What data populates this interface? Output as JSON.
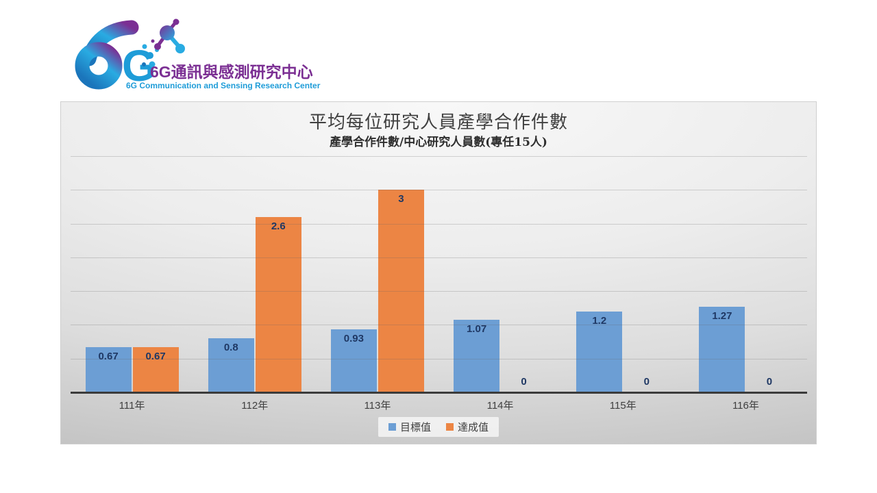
{
  "logo": {
    "mark": "6G",
    "name_zh": "6G通訊與感測研究中心",
    "name_en": "6G Communication and Sensing Research Center",
    "colors": {
      "purple": "#7B2F93",
      "blue": "#1E9CD8",
      "cyan": "#29ABE2",
      "deep_blue": "#1B75BB"
    }
  },
  "chart_data": {
    "type": "bar",
    "title": "平均每位研究人員產學合作件數",
    "subtitle": "產學合作件數/中心研究人員數(專任15人)",
    "categories": [
      "111年",
      "112年",
      "113年",
      "114年",
      "115年",
      "116年"
    ],
    "series": [
      {
        "name": "目標值",
        "color": "#6C9ED4",
        "values": [
          0.67,
          0.8,
          0.93,
          1.07,
          1.2,
          1.27
        ],
        "labels": [
          "0.67",
          "0.8",
          "0.93",
          "1.07",
          "1.2",
          "1.27"
        ]
      },
      {
        "name": "達成值",
        "color": "#EC8544",
        "values": [
          0.67,
          2.6,
          3,
          0,
          0,
          0
        ],
        "labels": [
          "0.67",
          "2.6",
          "3",
          "0",
          "0",
          "0"
        ]
      }
    ],
    "ylim": [
      0,
      3.5
    ],
    "grid_interval": 0.5,
    "grid": true,
    "y_tick_labels_visible": false,
    "legend_position": "bottom",
    "data_label_position": "inside-end",
    "data_label_color": "#1F3864",
    "axis_color": "#3B3B3B",
    "gridline_color": "#BDBDBD"
  }
}
